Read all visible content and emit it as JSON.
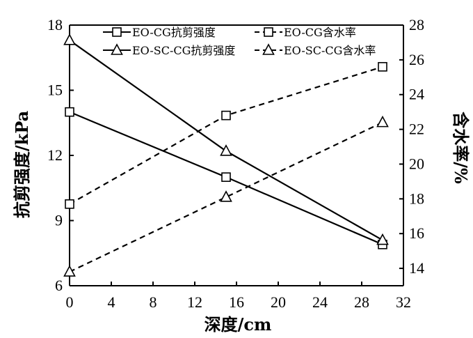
{
  "chart_data": {
    "type": "line",
    "xlabel": "深度/cm",
    "ylabel_left": "抗剪强度/kPa",
    "ylabel_right": "含水率/%",
    "xlim": [
      0,
      32
    ],
    "ylim_left": [
      6,
      18
    ],
    "ylim_right": [
      13,
      28
    ],
    "x_ticks": [
      0,
      4,
      8,
      12,
      16,
      20,
      24,
      28,
      32
    ],
    "y_left_ticks": [
      6,
      9,
      12,
      15,
      18
    ],
    "y_right_ticks": [
      14,
      16,
      18,
      20,
      22,
      24,
      26,
      28
    ],
    "grid": false,
    "legend_position": "top",
    "series": [
      {
        "name": "EO-CG抗剪强度",
        "axis": "left",
        "style": "solid",
        "marker": "square",
        "x": [
          0,
          15,
          30
        ],
        "values": [
          14.0,
          11.0,
          7.9
        ]
      },
      {
        "name": "EO-CG含水率",
        "axis": "right",
        "style": "dashed",
        "marker": "square",
        "x": [
          0,
          15,
          30
        ],
        "values": [
          17.7,
          22.8,
          25.6
        ]
      },
      {
        "name": "EO-SC-CG抗剪强度",
        "axis": "left",
        "style": "solid",
        "marker": "triangle",
        "x": [
          0,
          15,
          30
        ],
        "values": [
          17.3,
          12.2,
          8.1
        ]
      },
      {
        "name": "EO-SC-CG含水率",
        "axis": "right",
        "style": "dashed",
        "marker": "triangle",
        "x": [
          0,
          15,
          30
        ],
        "values": [
          13.8,
          18.1,
          22.4
        ]
      }
    ]
  }
}
